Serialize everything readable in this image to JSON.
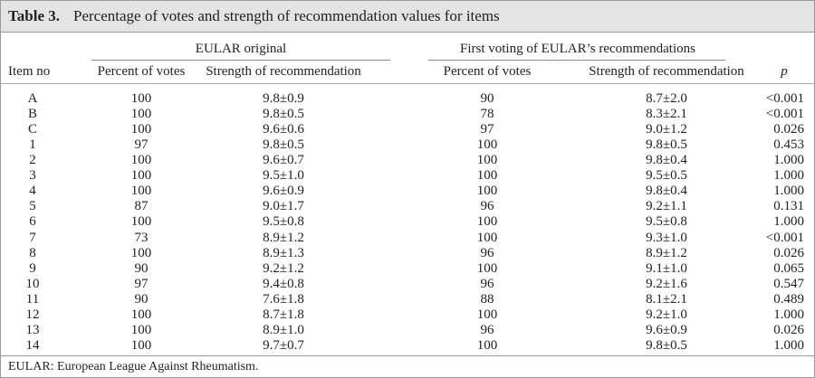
{
  "table": {
    "label": "Table 3.",
    "caption": "Percentage of votes and strength of recommendation values for items",
    "groups": [
      "EULAR original",
      "First voting of EULAR’s recommendations"
    ],
    "columns": [
      "Item no",
      "Percent of votes",
      "Strength of recommendation",
      "Percent of votes",
      "Strength of recommendation",
      "p"
    ],
    "rows": [
      [
        "A",
        "100",
        "9.8±0.9",
        "90",
        "8.7±2.0",
        "<0.001"
      ],
      [
        "B",
        "100",
        "9.8±0.5",
        "78",
        "8.3±2.1",
        "<0.001"
      ],
      [
        "C",
        "100",
        "9.6±0.6",
        "97",
        "9.0±1.2",
        "0.026"
      ],
      [
        "1",
        "97",
        "9.8±0.5",
        "100",
        "9.8±0.5",
        "0.453"
      ],
      [
        "2",
        "100",
        "9.6±0.7",
        "100",
        "9.8±0.4",
        "1.000"
      ],
      [
        "3",
        "100",
        "9.5±1.0",
        "100",
        "9.5±0.5",
        "1.000"
      ],
      [
        "4",
        "100",
        "9.6±0.9",
        "100",
        "9.8±0.4",
        "1.000"
      ],
      [
        "5",
        "87",
        "9.0±1.7",
        "96",
        "9.2±1.1",
        "0.131"
      ],
      [
        "6",
        "100",
        "9.5±0.8",
        "100",
        "9.5±0.8",
        "1.000"
      ],
      [
        "7",
        "73",
        "8.9±1.2",
        "100",
        "9.3±1.0",
        "<0.001"
      ],
      [
        "8",
        "100",
        "8.9±1.3",
        "96",
        "8.9±1.2",
        "0.026"
      ],
      [
        "9",
        "90",
        "9.2±1.2",
        "100",
        "9.1±1.0",
        "0.065"
      ],
      [
        "10",
        "97",
        "9.4±0.8",
        "96",
        "9.2±1.6",
        "0.547"
      ],
      [
        "11",
        "90",
        "7.6±1.8",
        "88",
        "8.1±2.1",
        "0.489"
      ],
      [
        "12",
        "100",
        "8.7±1.8",
        "100",
        "9.2±1.0",
        "1.000"
      ],
      [
        "13",
        "100",
        "8.9±1.0",
        "96",
        "9.6±0.9",
        "0.026"
      ],
      [
        "14",
        "100",
        "9.7±0.7",
        "100",
        "9.8±0.5",
        "1.000"
      ]
    ],
    "footnote": "EULAR: European League Against Rheumatism."
  }
}
